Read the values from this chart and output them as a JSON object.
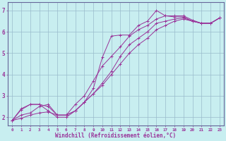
{
  "xlabel": "Windchill (Refroidissement éolien,°C)",
  "bg_color": "#c8eef0",
  "grid_color": "#99bbcc",
  "line_color": "#993399",
  "spine_color": "#666699",
  "xlim": [
    -0.5,
    23.5
  ],
  "ylim": [
    1.6,
    7.4
  ],
  "xtick_labels": [
    "0",
    "1",
    "2",
    "3",
    "4",
    "5",
    "6",
    "7",
    "8",
    "9",
    "10",
    "11",
    "12",
    "13",
    "14",
    "15",
    "16",
    "17",
    "18",
    "19",
    "20",
    "21",
    "22",
    "23"
  ],
  "ytick_values": [
    2,
    3,
    4,
    5,
    6,
    7
  ],
  "series": [
    [
      1.85,
      2.4,
      2.6,
      2.6,
      2.3,
      2.0,
      2.0,
      2.3,
      2.7,
      3.35,
      4.8,
      5.8,
      5.85,
      5.85,
      6.3,
      6.5,
      7.0,
      6.75,
      6.75,
      6.75,
      6.55,
      6.4,
      6.4,
      6.65
    ],
    [
      1.85,
      2.35,
      2.6,
      2.6,
      2.5,
      2.1,
      2.1,
      2.6,
      3.0,
      3.7,
      4.4,
      4.85,
      5.3,
      5.8,
      6.1,
      6.3,
      6.6,
      6.75,
      6.7,
      6.7,
      6.5,
      6.4,
      6.4,
      6.65
    ],
    [
      1.85,
      2.1,
      2.2,
      2.5,
      2.6,
      2.1,
      2.1,
      2.3,
      2.7,
      3.1,
      3.6,
      4.15,
      4.85,
      5.4,
      5.7,
      6.0,
      6.4,
      6.5,
      6.6,
      6.65,
      6.5,
      6.4,
      6.4,
      6.65
    ],
    [
      1.85,
      1.95,
      2.1,
      2.2,
      2.25,
      2.1,
      2.1,
      2.3,
      2.7,
      3.1,
      3.5,
      4.0,
      4.5,
      5.0,
      5.4,
      5.7,
      6.1,
      6.3,
      6.5,
      6.6,
      6.5,
      6.4,
      6.4,
      6.65
    ]
  ]
}
